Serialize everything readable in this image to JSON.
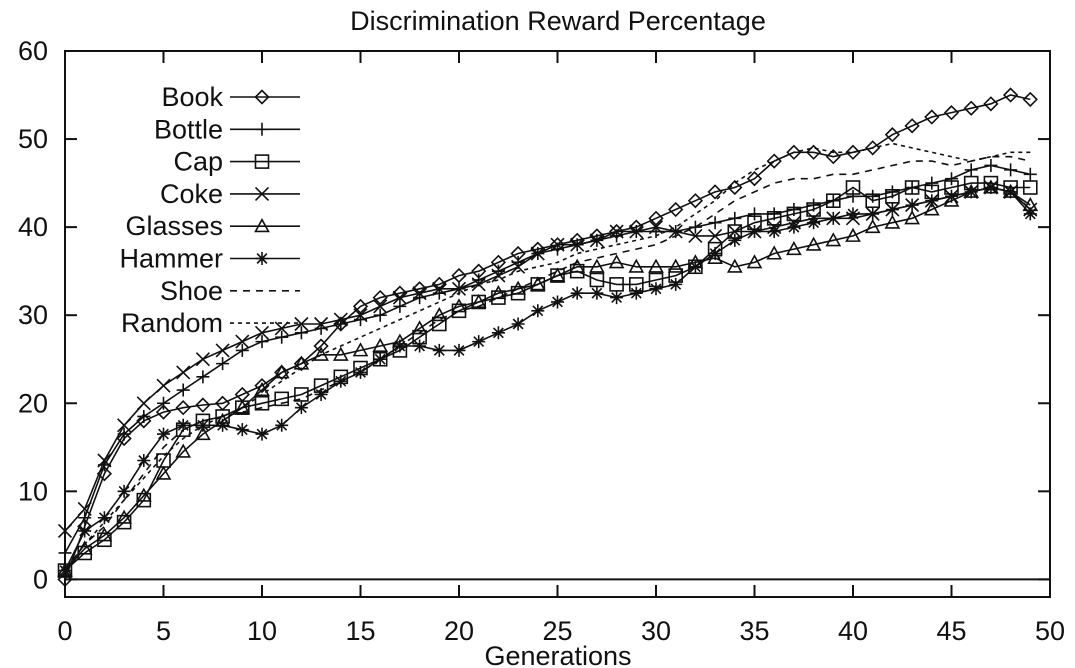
{
  "chart_data": {
    "type": "line",
    "title": "Discrimination Reward Percentage",
    "xlabel": "Generations",
    "ylabel": "",
    "xlim": [
      0,
      50
    ],
    "ylim": [
      -2,
      60
    ],
    "xticks": [
      0,
      5,
      10,
      15,
      20,
      25,
      30,
      35,
      40,
      45,
      50
    ],
    "yticks": [
      0,
      10,
      20,
      30,
      40,
      50,
      60
    ],
    "grid": false,
    "legend_position": "top-left",
    "series": [
      {
        "name": "Book",
        "marker": "diamond",
        "dash": "solid",
        "x": [
          0,
          1,
          2,
          3,
          4,
          5,
          6,
          7,
          8,
          9,
          10,
          11,
          12,
          13,
          14,
          15,
          16,
          17,
          18,
          19,
          20,
          21,
          22,
          23,
          24,
          25,
          26,
          27,
          28,
          29,
          30,
          31,
          32,
          33,
          34,
          35,
          36,
          37,
          38,
          39,
          40,
          41,
          42,
          43,
          44,
          45,
          46,
          47,
          48,
          49
        ],
        "y": [
          0,
          6,
          12,
          16,
          18,
          19,
          19.5,
          19.8,
          20,
          21,
          22,
          23.5,
          24.5,
          26.5,
          29,
          31,
          32,
          32.5,
          33,
          33.5,
          34.5,
          35,
          36,
          37,
          37.5,
          38,
          38.5,
          39,
          39.5,
          40,
          41,
          42,
          43,
          44,
          44.5,
          45.5,
          47.5,
          48.5,
          48.5,
          48,
          48.5,
          49,
          50.5,
          51.5,
          52.5,
          53,
          53.5,
          54,
          55,
          54.5
        ]
      },
      {
        "name": "Bottle",
        "marker": "plus",
        "dash": "solid",
        "x": [
          0,
          1,
          2,
          3,
          4,
          5,
          6,
          7,
          8,
          9,
          10,
          11,
          12,
          13,
          14,
          15,
          16,
          17,
          18,
          19,
          20,
          21,
          22,
          23,
          24,
          25,
          26,
          27,
          28,
          29,
          30,
          31,
          32,
          33,
          34,
          35,
          36,
          37,
          38,
          39,
          40,
          41,
          42,
          43,
          44,
          45,
          46,
          47,
          48,
          49
        ],
        "y": [
          3,
          7,
          13,
          16.5,
          18.5,
          20,
          21.5,
          23,
          24.5,
          26,
          27,
          27.5,
          28,
          28.5,
          29,
          29.5,
          30,
          31,
          32,
          32.5,
          33,
          34,
          35,
          36,
          37,
          37.5,
          38,
          38.5,
          39,
          39.5,
          39.5,
          39.5,
          40,
          40.5,
          41,
          41.5,
          41.5,
          42,
          42.5,
          43,
          43.5,
          43.5,
          44,
          44.5,
          45,
          45.5,
          46.5,
          47,
          46.5,
          46
        ]
      },
      {
        "name": "Cap",
        "marker": "square",
        "dash": "solid",
        "x": [
          0,
          1,
          2,
          3,
          4,
          5,
          6,
          7,
          8,
          9,
          10,
          11,
          12,
          13,
          14,
          15,
          16,
          17,
          18,
          19,
          20,
          21,
          22,
          23,
          24,
          25,
          26,
          27,
          28,
          29,
          30,
          31,
          32,
          33,
          34,
          35,
          36,
          37,
          38,
          39,
          40,
          41,
          42,
          43,
          44,
          45,
          46,
          47,
          48,
          49
        ],
        "y": [
          1,
          3,
          4.5,
          6.5,
          9,
          13.5,
          17,
          18,
          18.5,
          19.5,
          20,
          20.5,
          21,
          22,
          23,
          24,
          25,
          26,
          27.5,
          29,
          30.5,
          31.5,
          32,
          32.5,
          33.5,
          34.5,
          35,
          34,
          33.5,
          33.5,
          34,
          34.5,
          35.5,
          37.5,
          39.5,
          40.5,
          41,
          41.5,
          42,
          43,
          44.5,
          43,
          43.5,
          44.5,
          44,
          44.5,
          45,
          45,
          44.5,
          44.5
        ]
      },
      {
        "name": "Coke",
        "marker": "cross",
        "dash": "solid",
        "x": [
          0,
          1,
          2,
          3,
          4,
          5,
          6,
          7,
          8,
          9,
          10,
          11,
          12,
          13,
          14,
          15,
          16,
          17,
          18,
          19,
          20,
          21,
          22,
          23,
          24,
          25,
          26,
          27,
          28,
          29,
          30,
          31,
          32,
          33,
          34,
          35,
          36,
          37,
          38,
          39,
          40,
          41,
          42,
          43,
          44,
          45,
          46,
          47,
          48,
          49
        ],
        "y": [
          5.5,
          8,
          13.5,
          17.5,
          20,
          22,
          23.5,
          25,
          26,
          27,
          28,
          28.5,
          29,
          29,
          29.5,
          30,
          31,
          32,
          32.5,
          33,
          33,
          33.5,
          34.5,
          35.5,
          37,
          38,
          38,
          38.5,
          39.5,
          39.5,
          40,
          39.5,
          39,
          39,
          39.5,
          39.5,
          40,
          40.5,
          41,
          41,
          41,
          41.5,
          42,
          42.5,
          43,
          43.5,
          44,
          44.5,
          44,
          42
        ]
      },
      {
        "name": "Glasses",
        "marker": "triangle",
        "dash": "solid",
        "x": [
          0,
          1,
          2,
          3,
          4,
          5,
          6,
          7,
          8,
          9,
          10,
          11,
          12,
          13,
          14,
          15,
          16,
          17,
          18,
          19,
          20,
          21,
          22,
          23,
          24,
          25,
          26,
          27,
          28,
          29,
          30,
          31,
          32,
          33,
          34,
          35,
          36,
          37,
          38,
          39,
          40,
          41,
          42,
          43,
          44,
          45,
          46,
          47,
          48,
          49
        ],
        "y": [
          1,
          3.5,
          5,
          7,
          9.5,
          12,
          14.5,
          16.5,
          18,
          19.5,
          21.5,
          23.5,
          24.5,
          25.5,
          25.5,
          26,
          26.5,
          27,
          28.5,
          30,
          31,
          31.5,
          32.5,
          33,
          33.5,
          34.5,
          35.5,
          35.5,
          36,
          35.5,
          35.5,
          35.5,
          36,
          36.5,
          35.5,
          36,
          37,
          37.5,
          38,
          38.5,
          39,
          40,
          40.5,
          41,
          42,
          43,
          44,
          44.5,
          44,
          42.5
        ]
      },
      {
        "name": "Hammer",
        "marker": "star",
        "dash": "solid",
        "x": [
          0,
          1,
          2,
          3,
          4,
          5,
          6,
          7,
          8,
          9,
          10,
          11,
          12,
          13,
          14,
          15,
          16,
          17,
          18,
          19,
          20,
          21,
          22,
          23,
          24,
          25,
          26,
          27,
          28,
          29,
          30,
          31,
          32,
          33,
          34,
          35,
          36,
          37,
          38,
          39,
          40,
          41,
          42,
          43,
          44,
          45,
          46,
          47,
          48,
          49
        ],
        "y": [
          1,
          5.5,
          7,
          10,
          13.5,
          16.5,
          17.5,
          17.5,
          17.5,
          17,
          16.5,
          17.5,
          19.5,
          21,
          22.5,
          23.5,
          25,
          26.5,
          26.5,
          26,
          26,
          27,
          28,
          29,
          30.5,
          31.5,
          32.5,
          32.5,
          32,
          32.5,
          33,
          33.5,
          35.5,
          37,
          38.5,
          39.5,
          39.5,
          40,
          40.5,
          41,
          41.5,
          41.5,
          42,
          42.5,
          43,
          43.5,
          44,
          44.5,
          44,
          41.5
        ]
      },
      {
        "name": "Shoe",
        "marker": "none",
        "dash": "dashed",
        "x": [
          0,
          1,
          2,
          3,
          4,
          5,
          6,
          7,
          8,
          9,
          10,
          11,
          12,
          13,
          14,
          15,
          16,
          17,
          18,
          19,
          20,
          21,
          22,
          23,
          24,
          25,
          26,
          27,
          28,
          29,
          30,
          31,
          32,
          33,
          34,
          35,
          36,
          37,
          38,
          39,
          40,
          41,
          42,
          43,
          44,
          45,
          46,
          47,
          48,
          49
        ],
        "y": [
          1,
          4,
          6,
          9,
          12,
          15,
          17,
          18,
          18.5,
          19,
          19.5,
          20,
          20.5,
          21.5,
          22.5,
          23.5,
          25,
          26.5,
          28,
          29.5,
          30.5,
          31,
          32,
          33,
          34,
          35,
          36,
          36.5,
          37,
          37.5,
          38,
          39,
          40,
          41.5,
          43,
          44,
          45,
          45.5,
          45.5,
          46,
          46,
          46.5,
          47,
          47.5,
          47.5,
          47,
          47.5,
          48,
          48,
          47.5
        ]
      },
      {
        "name": "Random",
        "marker": "none",
        "dash": "dotted",
        "x": [
          0,
          1,
          2,
          3,
          4,
          5,
          6,
          7,
          8,
          9,
          10,
          11,
          12,
          13,
          14,
          15,
          16,
          17,
          18,
          19,
          20,
          21,
          22,
          23,
          24,
          25,
          26,
          27,
          28,
          29,
          30,
          31,
          32,
          33,
          34,
          35,
          36,
          37,
          38,
          39,
          40,
          41,
          42,
          43,
          44,
          45,
          46,
          47,
          48,
          49
        ],
        "y": [
          1,
          4,
          6.5,
          9,
          11.5,
          14,
          16,
          17.5,
          18.5,
          19.5,
          21,
          22.5,
          24,
          25.5,
          26.5,
          27.5,
          28.5,
          29.5,
          30.5,
          31.5,
          32.5,
          33.5,
          34,
          35,
          35.5,
          36,
          37,
          37.5,
          38,
          38.5,
          39,
          40,
          41.5,
          43,
          45,
          46.5,
          47.5,
          48.5,
          49,
          48.5,
          48.5,
          49,
          49.5,
          49,
          48.5,
          48,
          47.5,
          48,
          48.5,
          48.5
        ]
      }
    ]
  }
}
